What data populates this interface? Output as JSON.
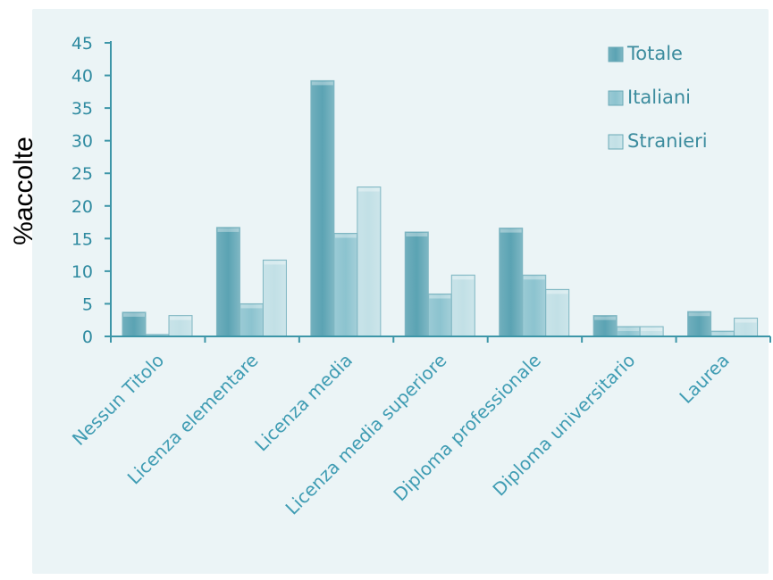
{
  "chart_data": {
    "type": "bar",
    "title": "",
    "xlabel": "",
    "ylabel": "%accolte",
    "ylim": [
      0,
      45
    ],
    "yticks": [
      0,
      5,
      10,
      15,
      20,
      25,
      30,
      35,
      40,
      45
    ],
    "grid": false,
    "legend_position": "top-right",
    "categories": [
      "Nessun Titolo",
      "Licenza elementare",
      "Licenza media",
      "Licenza media superiore",
      "Diploma professionale",
      "Diploma universitario",
      "Laurea"
    ],
    "series": [
      {
        "name": "Totale",
        "values": [
          3.7,
          16.7,
          39.2,
          16.0,
          16.6,
          3.2,
          3.8
        ]
      },
      {
        "name": "Italiani",
        "values": [
          0.3,
          5.0,
          15.8,
          6.5,
          9.4,
          1.5,
          0.8
        ]
      },
      {
        "name": "Stranieri",
        "values": [
          3.2,
          11.7,
          22.9,
          9.4,
          7.2,
          1.5,
          2.8
        ]
      }
    ],
    "colors": {
      "background_panel": "#ebf4f6",
      "axis": "#3d96a8",
      "tick_text": "#2e8aa0",
      "category_text": "#3f9cb3",
      "legend_text": "#3c8c9e",
      "ylabel_text": "#000000",
      "series": [
        "#5ba3b3",
        "#8cc3cf",
        "#c2e0e6"
      ]
    }
  }
}
